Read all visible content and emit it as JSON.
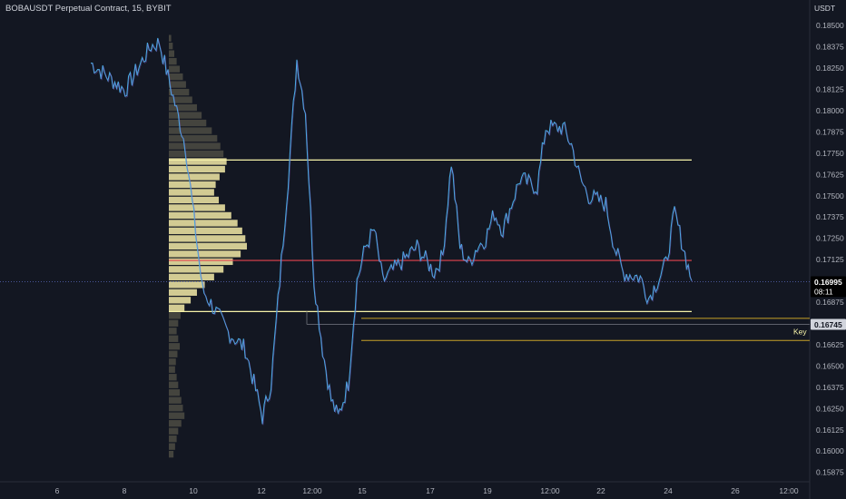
{
  "header": {
    "symbol_title": "BOBAUSDT Perpetual Contract, 15, BYBIT",
    "currency": "USDT"
  },
  "colors": {
    "background": "#131722",
    "price_line": "#4aa8e0",
    "price_line_alt": "#7e57c2",
    "range_line": "#f5f2a8",
    "poc_line": "#e5444f",
    "key_line": "#c8a227",
    "profile_fill": "#e8dfa0",
    "profile_fill_dim": "#6e6a55",
    "last_price_bg": "#000000",
    "key_badge_bg": "#f5f2a8"
  },
  "price_axis": {
    "ticks": [
      "0.18500",
      "0.18375",
      "0.18250",
      "0.18125",
      "0.18000",
      "0.17875",
      "0.17750",
      "0.17625",
      "0.17500",
      "0.17375",
      "0.17250",
      "0.17125",
      "0.16875",
      "0.16625",
      "0.16500",
      "0.16375",
      "0.16250",
      "0.16125",
      "0.16000",
      "0.15875"
    ]
  },
  "time_axis": {
    "ticks": [
      "6",
      "8",
      "10",
      "12",
      "12:00",
      "15",
      "17",
      "19",
      "12:00",
      "22",
      "24",
      "26",
      "12:00"
    ]
  },
  "last_price": {
    "price": "0.16995",
    "countdown": "08:11"
  },
  "key_level": {
    "price": "0.16745",
    "label": "Key"
  },
  "chart_data": {
    "type": "line",
    "title": "BOBAUSDT Perpetual Contract, 15, BYBIT",
    "ylabel": "USDT",
    "ylim": [
      0.1582,
      0.1865
    ],
    "levels": {
      "range_high": 0.1771,
      "poc": 0.1712,
      "range_low": 0.1682,
      "key_high": 0.1678,
      "key": 0.16745,
      "key_low": 0.1665
    },
    "price_keypoints": [
      [
        0.0,
        0.1828
      ],
      [
        2.0,
        0.1812
      ],
      [
        3.5,
        0.1838
      ],
      [
        4.0,
        0.184
      ],
      [
        5.5,
        0.178
      ],
      [
        6.5,
        0.1695
      ],
      [
        8.0,
        0.167
      ],
      [
        9.0,
        0.166
      ],
      [
        10.0,
        0.162
      ],
      [
        10.5,
        0.164
      ],
      [
        11.0,
        0.17
      ],
      [
        11.5,
        0.176
      ],
      [
        12.0,
        0.183
      ],
      [
        12.5,
        0.18
      ],
      [
        13.0,
        0.17
      ],
      [
        13.5,
        0.166
      ],
      [
        14.0,
        0.163
      ],
      [
        14.4,
        0.162
      ],
      [
        15.0,
        0.164
      ],
      [
        15.5,
        0.17
      ],
      [
        16.0,
        0.172
      ],
      [
        16.5,
        0.173
      ],
      [
        17.0,
        0.17
      ],
      [
        18.0,
        0.171
      ],
      [
        19.0,
        0.172
      ],
      [
        20.0,
        0.1705
      ],
      [
        20.5,
        0.1715
      ],
      [
        21.0,
        0.177
      ],
      [
        21.5,
        0.172
      ],
      [
        22.0,
        0.171
      ],
      [
        22.5,
        0.172
      ],
      [
        23.0,
        0.1725
      ],
      [
        23.5,
        0.174
      ],
      [
        24.0,
        0.173
      ],
      [
        25.0,
        0.176
      ],
      [
        26.0,
        0.1755
      ],
      [
        26.5,
        0.179
      ],
      [
        27.5,
        0.179
      ],
      [
        28.0,
        0.178
      ],
      [
        28.5,
        0.176
      ],
      [
        29.0,
        0.175
      ],
      [
        30.0,
        0.1745
      ],
      [
        30.5,
        0.172
      ],
      [
        31.0,
        0.1705
      ],
      [
        32.0,
        0.1702
      ],
      [
        32.5,
        0.169
      ],
      [
        33.0,
        0.17
      ],
      [
        33.5,
        0.171
      ],
      [
        34.0,
        0.174
      ],
      [
        34.5,
        0.172
      ],
      [
        35.0,
        0.17
      ]
    ],
    "volume_profile": [
      0.03,
      0.05,
      0.07,
      0.1,
      0.14,
      0.18,
      0.22,
      0.26,
      0.3,
      0.36,
      0.42,
      0.48,
      0.55,
      0.62,
      0.66,
      0.7,
      0.74,
      0.72,
      0.65,
      0.6,
      0.58,
      0.64,
      0.72,
      0.8,
      0.88,
      0.94,
      0.98,
      1.0,
      0.92,
      0.82,
      0.7,
      0.58,
      0.46,
      0.36,
      0.28,
      0.2,
      0.15,
      0.12,
      0.1,
      0.12,
      0.14,
      0.11,
      0.09,
      0.08,
      0.1,
      0.12,
      0.14,
      0.16,
      0.18,
      0.2,
      0.16,
      0.12,
      0.1,
      0.08,
      0.06
    ]
  }
}
